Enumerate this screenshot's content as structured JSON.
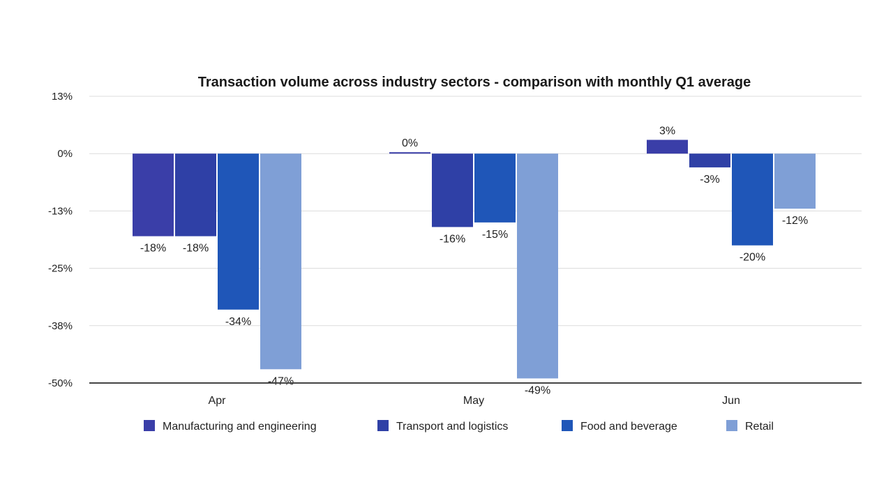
{
  "chart_data": {
    "type": "bar",
    "title": "Transaction volume across industry sectors - comparison with monthly Q1 average",
    "xlabel": "",
    "ylabel": "",
    "categories": [
      "Apr",
      "May",
      "Jun"
    ],
    "y_ticks": [
      "13%",
      "0%",
      "-13%",
      "-25%",
      "-38%",
      "-50%"
    ],
    "y_tick_values": [
      12.5,
      0,
      -12.5,
      -25,
      -37.5,
      -50
    ],
    "ylim": [
      -50,
      12.5
    ],
    "grid": true,
    "legend_position": "bottom",
    "series": [
      {
        "name": "Manufacturing and engineering",
        "color": "#3a3ea8",
        "values": [
          -18,
          0,
          3
        ],
        "labels": [
          "-18%",
          "0%",
          "3%"
        ]
      },
      {
        "name": "Transport and logistics",
        "color": "#2f40a6",
        "values": [
          -18,
          -16,
          -3
        ],
        "labels": [
          "-18%",
          "-16%",
          "-3%"
        ]
      },
      {
        "name": "Food and beverage",
        "color": "#1f56b8",
        "values": [
          -34,
          -15,
          -20
        ],
        "labels": [
          "-34%",
          "-15%",
          "-20%"
        ]
      },
      {
        "name": "Retail",
        "color": "#7f9fd6",
        "values": [
          -47,
          -49,
          -12
        ],
        "labels": [
          "-47%",
          "-49%",
          "-12%"
        ]
      }
    ]
  }
}
